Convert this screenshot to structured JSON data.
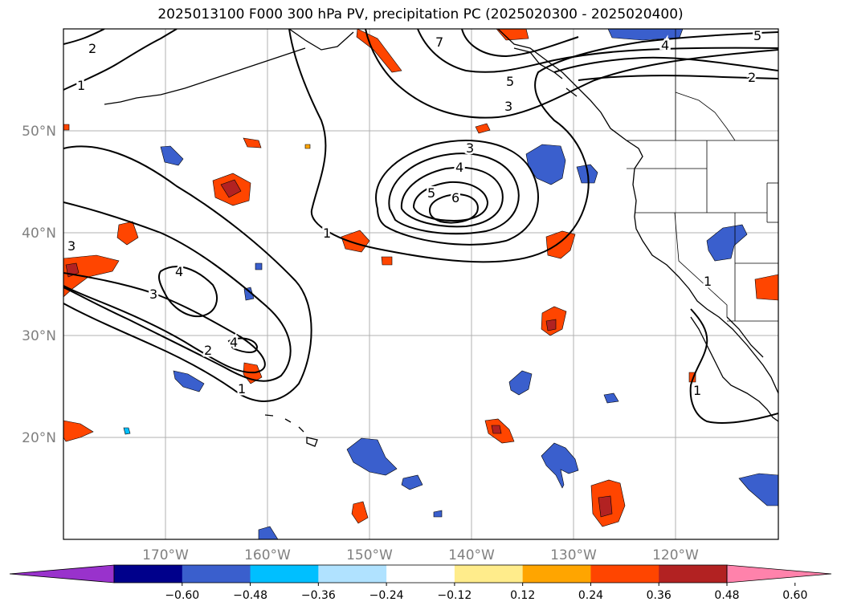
{
  "title": "2025013100 F000 300 hPa PV, precipitation PC (2025020300 - 2025020400)",
  "map": {
    "lon_labels": [
      "170°W",
      "160°W",
      "150°W",
      "140°W",
      "130°W",
      "120°W"
    ],
    "lat_labels": [
      "50°N",
      "40°N",
      "30°N",
      "20°N"
    ],
    "pv_contour_labels": [
      "1",
      "2",
      "3",
      "4",
      "5",
      "6",
      "7"
    ]
  },
  "colorbar": {
    "ticks": [
      "−0.60",
      "−0.48",
      "−0.36",
      "−0.24",
      "−0.12",
      "0.12",
      "0.24",
      "0.36",
      "0.48",
      "0.60"
    ],
    "colors": [
      "#9932cc",
      "#00008b",
      "#3a5fcd",
      "#00bfff",
      "#b0e2ff",
      "#ffffff",
      "#ffec8b",
      "#ffa500",
      "#ff4500",
      "#b22222",
      "#ff82ab"
    ]
  }
}
